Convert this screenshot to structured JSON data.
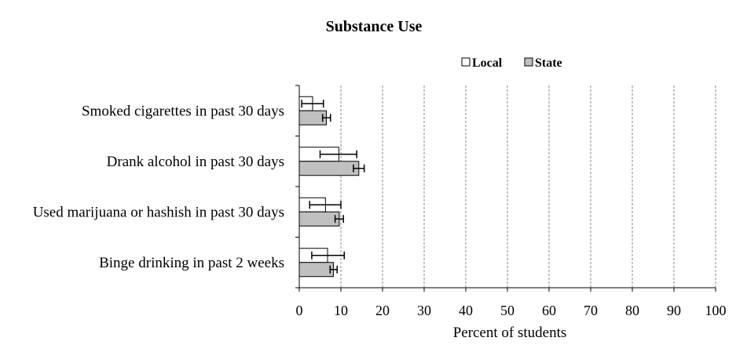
{
  "chart_data": {
    "type": "bar",
    "orientation": "horizontal",
    "title": "Substance Use",
    "xlabel": "Percent of students",
    "ylabel": "",
    "xlim": [
      0,
      100
    ],
    "xticks": [
      0,
      10,
      20,
      30,
      40,
      50,
      60,
      70,
      80,
      90,
      100
    ],
    "grid": "vertical dashed",
    "legend_position": "top-right",
    "categories": [
      "Smoked cigarettes in past 30 days",
      "Drank alcohol in past 30 days",
      "Used marijuana or hashish in past 30 days",
      "Binge drinking in past 2 weeks"
    ],
    "series": [
      {
        "name": "Local",
        "color": "#ffffff",
        "values": [
          3.2,
          9.5,
          6.3,
          6.8
        ],
        "error_low": [
          0.6,
          5.0,
          2.5,
          3.0
        ],
        "error_high": [
          5.8,
          13.8,
          10.0,
          10.8
        ]
      },
      {
        "name": "State",
        "color": "#c0c0c0",
        "values": [
          6.5,
          14.3,
          9.6,
          8.2
        ],
        "error_low": [
          5.6,
          13.0,
          8.6,
          7.4
        ],
        "error_high": [
          7.5,
          15.6,
          10.6,
          9.1
        ]
      }
    ]
  }
}
